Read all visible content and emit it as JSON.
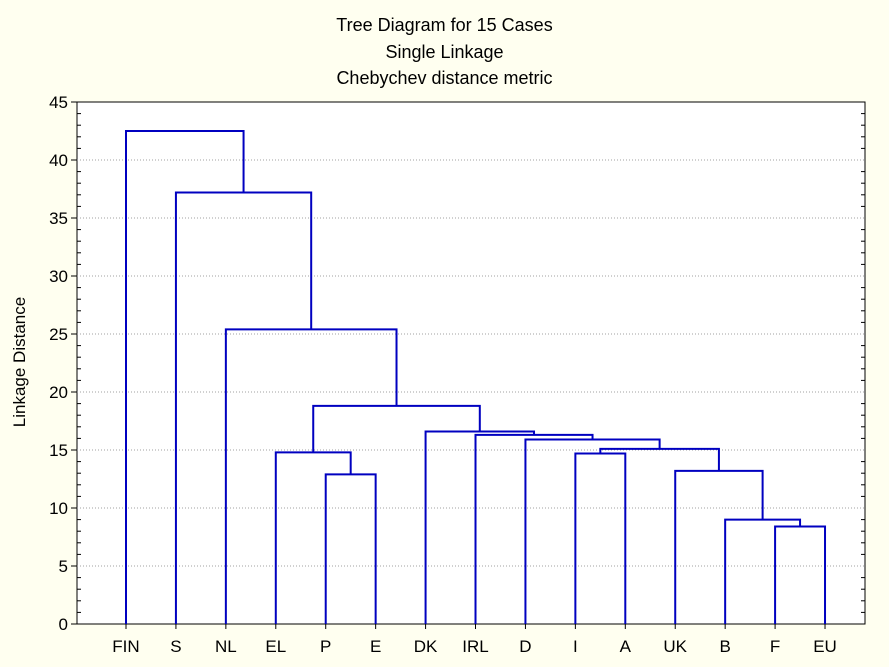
{
  "chart_data": {
    "type": "dendrogram",
    "title": "Tree Diagram for 15 Cases",
    "subtitle": "Single Linkage",
    "subtitle2": "Chebychev distance metric",
    "xlabel": "",
    "ylabel": "Linkage Distance",
    "ylim": [
      0,
      45
    ],
    "yticks": [
      0,
      5,
      10,
      15,
      20,
      25,
      30,
      35,
      40,
      45
    ],
    "grid": true,
    "leaves": [
      "FIN",
      "S",
      "NL",
      "EL",
      "P",
      "E",
      "DK",
      "IRL",
      "D",
      "I",
      "A",
      "UK",
      "B",
      "F",
      "EU"
    ],
    "merges": [
      {
        "left": 13,
        "right": 14,
        "height": 8.4,
        "id": "m1"
      },
      {
        "left": 12,
        "right": "m1",
        "height": 9.0,
        "id": "m2"
      },
      {
        "left": 4,
        "right": 5,
        "height": 12.9,
        "id": "m3"
      },
      {
        "left": 11,
        "right": "m2",
        "height": 13.2,
        "id": "m4"
      },
      {
        "left": 9,
        "right": 10,
        "height": 14.7,
        "id": "m5"
      },
      {
        "left": 3,
        "right": "m3",
        "height": 14.8,
        "id": "m6"
      },
      {
        "left": "m5",
        "right": "m4",
        "height": 15.1,
        "id": "m7"
      },
      {
        "left": 8,
        "right": "m7",
        "height": 15.9,
        "id": "m8"
      },
      {
        "left": 7,
        "right": "m8",
        "height": 16.3,
        "id": "m9"
      },
      {
        "left": 6,
        "right": "m9",
        "height": 16.6,
        "id": "m10"
      },
      {
        "left": "m6",
        "right": "m10",
        "height": 18.8,
        "id": "m11"
      },
      {
        "left": 2,
        "right": "m11",
        "height": 25.4,
        "id": "m12"
      },
      {
        "left": 1,
        "right": "m12",
        "height": 37.2,
        "id": "m13"
      },
      {
        "left": 0,
        "right": "m13",
        "height": 42.5,
        "id": "m14"
      }
    ]
  },
  "colors": {
    "background": "#fffff0",
    "plot_background": "#ffffff",
    "tree_line": "#0000c0",
    "grid": "#a0a0a0",
    "axis": "#000000"
  }
}
